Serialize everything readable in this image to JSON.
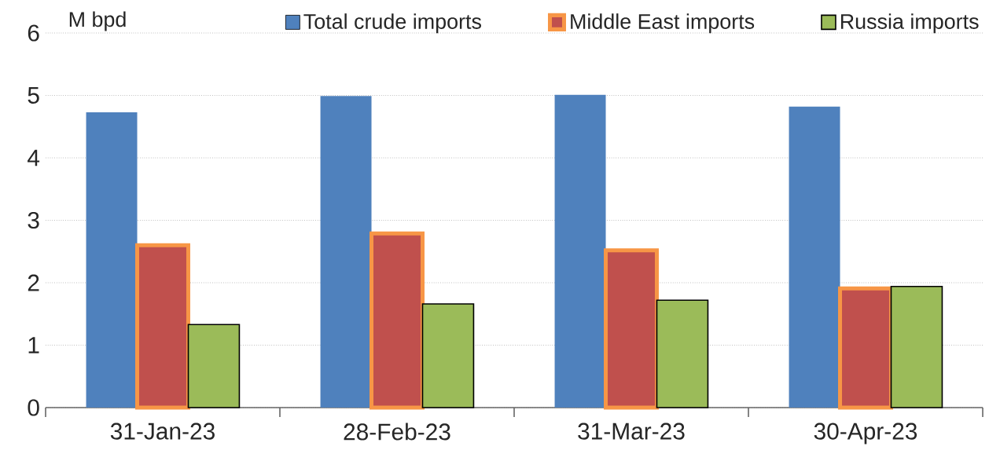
{
  "chart_data": {
    "type": "bar",
    "ylabel": "M bpd",
    "categories": [
      "31-Jan-23",
      "28-Feb-23",
      "31-Mar-23",
      "30-Apr-23"
    ],
    "series": [
      {
        "name": "Total crude imports",
        "color": "#4f81bd",
        "values": [
          4.73,
          4.99,
          5.01,
          4.82
        ]
      },
      {
        "name": "Middle East imports",
        "color": "#c0504d",
        "values": [
          2.6,
          2.79,
          2.52,
          1.91
        ]
      },
      {
        "name": "Russia imports",
        "color": "#9bbb59",
        "values": [
          1.33,
          1.66,
          1.72,
          1.94
        ]
      }
    ],
    "ylim": [
      0,
      6
    ],
    "yticks": [
      0,
      1,
      2,
      3,
      4,
      5,
      6
    ],
    "grid": "y",
    "legend": "top"
  }
}
